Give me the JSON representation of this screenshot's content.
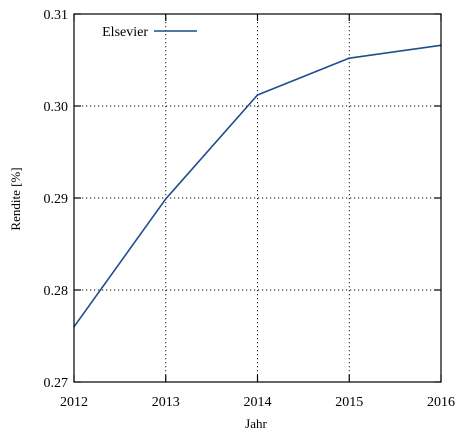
{
  "chart_data": {
    "type": "line",
    "title": "",
    "xlabel": "Jahr",
    "ylabel": "Rendite [%]",
    "x": [
      2012,
      2013,
      2014,
      2015,
      2016
    ],
    "xticks": [
      "2012",
      "2013",
      "2014",
      "2015",
      "2016"
    ],
    "yticks": [
      "0.27",
      "0.28",
      "0.29",
      "0.30",
      "0.31"
    ],
    "ytick_values": [
      0.27,
      0.28,
      0.29,
      0.3,
      0.31
    ],
    "xlim": [
      2012,
      2016
    ],
    "ylim": [
      0.27,
      0.31
    ],
    "grid": true,
    "legend_position": "top-left",
    "series": [
      {
        "name": "Elsevier",
        "color": "#1f4e8c",
        "values": [
          0.276,
          0.2899,
          0.3012,
          0.3052,
          0.3066
        ]
      }
    ]
  }
}
